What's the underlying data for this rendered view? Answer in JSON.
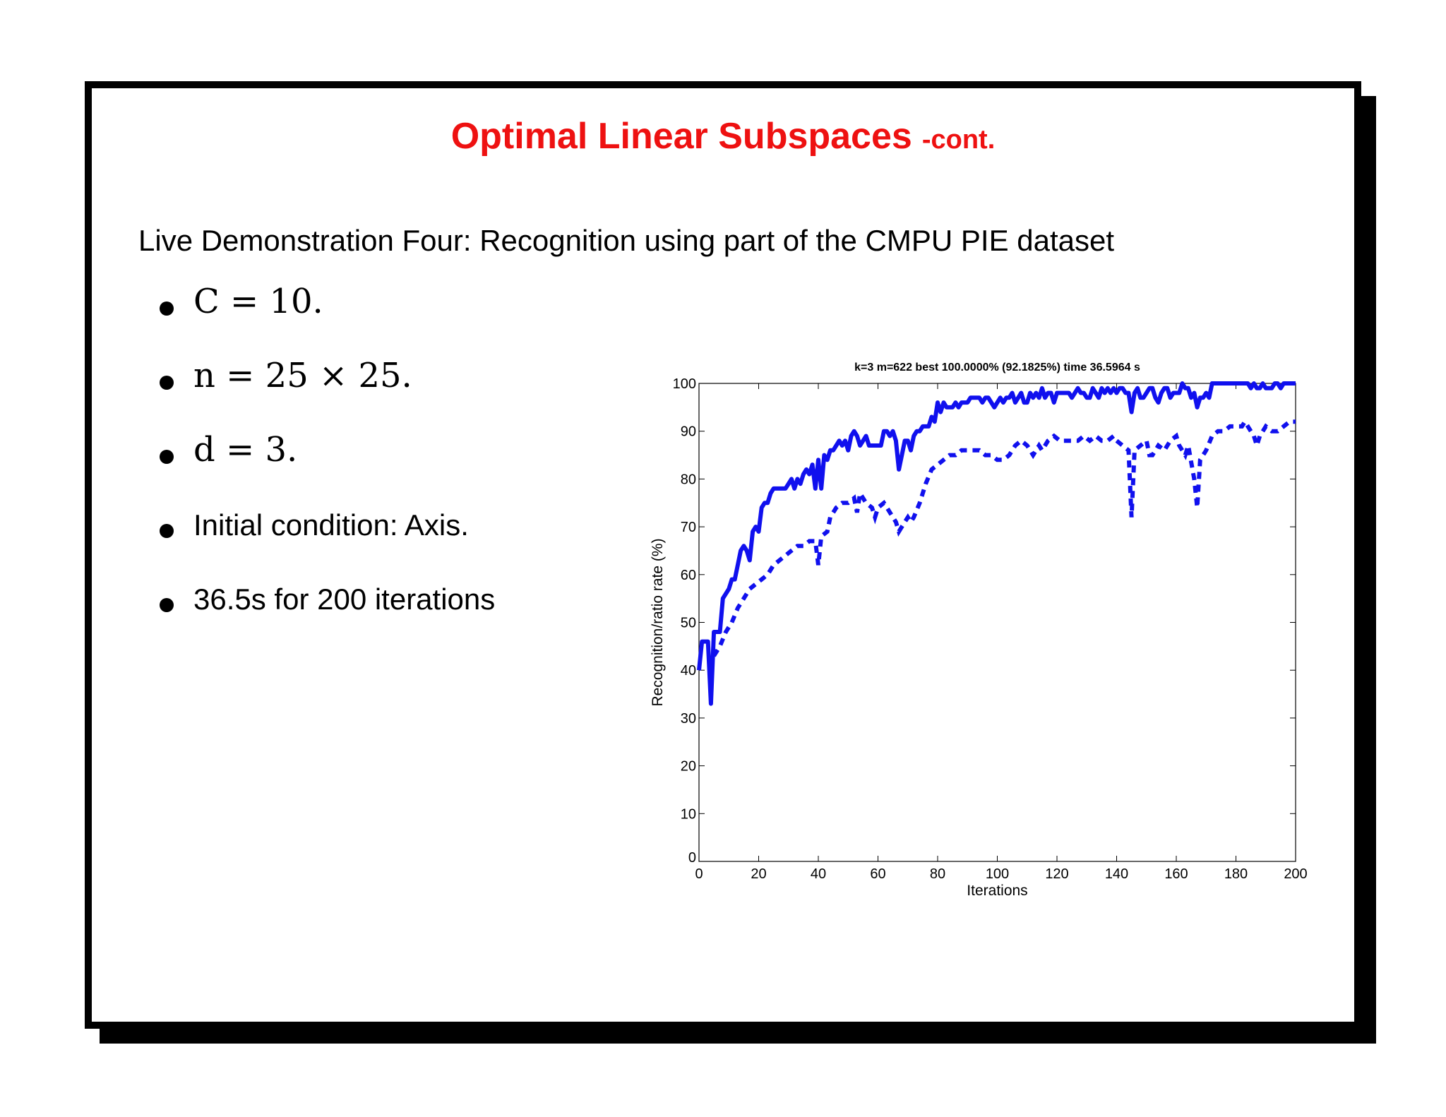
{
  "slide": {
    "title": "Optimal Linear Subspaces",
    "title_suffix": "-cont.",
    "intro": "Live Demonstration Four: Recognition using part of the CMPU PIE dataset",
    "bullets": [
      {
        "text": "C = 10.",
        "math": true
      },
      {
        "text": "n = 25 × 25.",
        "math": true
      },
      {
        "text": "d = 3.",
        "math": true
      },
      {
        "text": "Initial condition: Axis.",
        "math": false
      },
      {
        "text": "36.5s for 200 iterations",
        "math": false
      }
    ],
    "colors": {
      "title": "#ee1111",
      "series": "#1010ee"
    }
  },
  "chart_data": {
    "type": "line",
    "title": "k=3 m=622 best 100.0000% (92.1825%) time 36.5964 s",
    "xlabel": "Iterations",
    "ylabel": "Recognition/ratio rate (%)",
    "xlim": [
      0,
      200
    ],
    "ylim": [
      0,
      100
    ],
    "xticks": [
      0,
      20,
      40,
      60,
      80,
      100,
      120,
      140,
      160,
      180,
      200
    ],
    "yticks": [
      0,
      10,
      20,
      30,
      40,
      50,
      60,
      70,
      80,
      90,
      100
    ],
    "grid": false,
    "series": [
      {
        "style": "solid",
        "color": "#1010ee",
        "points": [
          [
            0,
            40
          ],
          [
            1,
            46
          ],
          [
            3,
            46
          ],
          [
            4,
            33
          ],
          [
            5,
            48
          ],
          [
            7,
            48
          ],
          [
            8,
            55
          ],
          [
            10,
            57
          ],
          [
            11,
            59
          ],
          [
            12,
            59
          ],
          [
            13,
            62
          ],
          [
            14,
            65
          ],
          [
            15,
            66
          ],
          [
            16,
            65
          ],
          [
            17,
            63
          ],
          [
            18,
            69
          ],
          [
            19,
            70
          ],
          [
            20,
            69
          ],
          [
            21,
            74
          ],
          [
            22,
            75
          ],
          [
            23,
            75
          ],
          [
            24,
            77
          ],
          [
            25,
            78
          ],
          [
            26,
            78
          ],
          [
            28,
            78
          ],
          [
            29,
            78
          ],
          [
            30,
            79
          ],
          [
            31,
            80
          ],
          [
            32,
            78
          ],
          [
            33,
            80
          ],
          [
            34,
            79
          ],
          [
            35,
            81
          ],
          [
            36,
            82
          ],
          [
            37,
            81
          ],
          [
            38,
            83
          ],
          [
            39,
            78
          ],
          [
            40,
            84
          ],
          [
            41,
            78
          ],
          [
            42,
            85
          ],
          [
            43,
            84
          ],
          [
            44,
            86
          ],
          [
            45,
            86
          ],
          [
            46,
            87
          ],
          [
            47,
            88
          ],
          [
            48,
            87
          ],
          [
            49,
            88
          ],
          [
            50,
            86
          ],
          [
            51,
            89
          ],
          [
            52,
            90
          ],
          [
            53,
            89
          ],
          [
            54,
            87
          ],
          [
            55,
            88
          ],
          [
            56,
            89
          ],
          [
            57,
            87
          ],
          [
            58,
            87
          ],
          [
            59,
            87
          ],
          [
            60,
            87
          ],
          [
            61,
            87
          ],
          [
            62,
            90
          ],
          [
            63,
            90
          ],
          [
            64,
            89
          ],
          [
            65,
            90
          ],
          [
            66,
            88
          ],
          [
            67,
            82
          ],
          [
            68,
            85
          ],
          [
            69,
            88
          ],
          [
            70,
            88
          ],
          [
            71,
            86
          ],
          [
            72,
            89
          ],
          [
            73,
            90
          ],
          [
            74,
            90
          ],
          [
            75,
            91
          ],
          [
            76,
            91
          ],
          [
            77,
            91
          ],
          [
            78,
            93
          ],
          [
            79,
            92
          ],
          [
            80,
            96
          ],
          [
            81,
            94
          ],
          [
            82,
            96
          ],
          [
            83,
            95
          ],
          [
            84,
            95
          ],
          [
            85,
            95
          ],
          [
            86,
            96
          ],
          [
            87,
            95
          ],
          [
            88,
            96
          ],
          [
            89,
            96
          ],
          [
            90,
            96
          ],
          [
            91,
            97
          ],
          [
            92,
            97
          ],
          [
            93,
            97
          ],
          [
            94,
            97
          ],
          [
            95,
            96
          ],
          [
            96,
            97
          ],
          [
            97,
            97
          ],
          [
            98,
            96
          ],
          [
            99,
            95
          ],
          [
            100,
            96
          ],
          [
            101,
            97
          ],
          [
            102,
            96
          ],
          [
            103,
            97
          ],
          [
            104,
            97
          ],
          [
            105,
            98
          ],
          [
            106,
            96
          ],
          [
            107,
            97
          ],
          [
            108,
            98
          ],
          [
            109,
            96
          ],
          [
            110,
            96
          ],
          [
            111,
            98
          ],
          [
            112,
            97
          ],
          [
            113,
            98
          ],
          [
            114,
            97
          ],
          [
            115,
            99
          ],
          [
            116,
            97
          ],
          [
            117,
            98
          ],
          [
            118,
            98
          ],
          [
            119,
            96
          ],
          [
            120,
            98
          ],
          [
            121,
            98
          ],
          [
            122,
            98
          ],
          [
            123,
            98
          ],
          [
            124,
            98
          ],
          [
            125,
            97
          ],
          [
            126,
            98
          ],
          [
            127,
            99
          ],
          [
            128,
            98
          ],
          [
            129,
            98
          ],
          [
            130,
            97
          ],
          [
            131,
            97
          ],
          [
            132,
            99
          ],
          [
            133,
            98
          ],
          [
            134,
            97
          ],
          [
            135,
            99
          ],
          [
            136,
            98
          ],
          [
            137,
            99
          ],
          [
            138,
            98
          ],
          [
            139,
            99
          ],
          [
            140,
            98
          ],
          [
            141,
            99
          ],
          [
            142,
            99
          ],
          [
            143,
            98
          ],
          [
            144,
            98
          ],
          [
            145,
            94
          ],
          [
            146,
            98
          ],
          [
            147,
            99
          ],
          [
            148,
            97
          ],
          [
            149,
            97
          ],
          [
            150,
            98
          ],
          [
            151,
            99
          ],
          [
            152,
            99
          ],
          [
            153,
            97
          ],
          [
            154,
            96
          ],
          [
            155,
            98
          ],
          [
            156,
            99
          ],
          [
            157,
            99
          ],
          [
            158,
            97
          ],
          [
            159,
            98
          ],
          [
            160,
            98
          ],
          [
            161,
            98
          ],
          [
            162,
            100
          ],
          [
            163,
            99
          ],
          [
            164,
            99
          ],
          [
            165,
            97
          ],
          [
            166,
            98
          ],
          [
            167,
            95
          ],
          [
            168,
            97
          ],
          [
            169,
            97
          ],
          [
            170,
            98
          ],
          [
            171,
            97
          ],
          [
            172,
            100
          ],
          [
            173,
            100
          ],
          [
            174,
            100
          ],
          [
            175,
            100
          ],
          [
            176,
            100
          ],
          [
            177,
            100
          ],
          [
            178,
            100
          ],
          [
            179,
            100
          ],
          [
            180,
            100
          ],
          [
            181,
            100
          ],
          [
            182,
            100
          ],
          [
            183,
            100
          ],
          [
            184,
            100
          ],
          [
            185,
            99
          ],
          [
            186,
            100
          ],
          [
            187,
            99
          ],
          [
            188,
            99
          ],
          [
            189,
            100
          ],
          [
            190,
            99
          ],
          [
            191,
            99
          ],
          [
            192,
            99
          ],
          [
            193,
            100
          ],
          [
            194,
            100
          ],
          [
            195,
            99
          ],
          [
            196,
            100
          ],
          [
            197,
            100
          ],
          [
            198,
            100
          ],
          [
            199,
            100
          ],
          [
            200,
            100
          ]
        ]
      },
      {
        "style": "dashed",
        "color": "#1010ee",
        "points": [
          [
            5,
            43
          ],
          [
            7,
            45
          ],
          [
            9,
            48
          ],
          [
            11,
            50
          ],
          [
            13,
            53
          ],
          [
            15,
            55
          ],
          [
            17,
            57
          ],
          [
            19,
            58
          ],
          [
            21,
            59
          ],
          [
            23,
            60
          ],
          [
            25,
            62
          ],
          [
            27,
            63
          ],
          [
            29,
            64
          ],
          [
            31,
            65
          ],
          [
            33,
            66
          ],
          [
            35,
            66
          ],
          [
            37,
            67
          ],
          [
            39,
            67
          ],
          [
            40,
            62
          ],
          [
            41,
            68
          ],
          [
            43,
            69
          ],
          [
            44,
            72
          ],
          [
            46,
            74
          ],
          [
            48,
            75
          ],
          [
            50,
            75
          ],
          [
            52,
            76
          ],
          [
            53,
            73
          ],
          [
            54,
            77
          ],
          [
            56,
            75
          ],
          [
            58,
            74
          ],
          [
            59,
            72
          ],
          [
            60,
            74
          ],
          [
            62,
            75
          ],
          [
            63,
            74
          ],
          [
            65,
            72
          ],
          [
            66,
            71
          ],
          [
            67,
            69
          ],
          [
            68,
            70
          ],
          [
            70,
            72
          ],
          [
            71,
            71
          ],
          [
            72,
            72
          ],
          [
            74,
            75
          ],
          [
            76,
            79
          ],
          [
            78,
            82
          ],
          [
            80,
            83
          ],
          [
            82,
            84
          ],
          [
            84,
            85
          ],
          [
            86,
            85
          ],
          [
            88,
            86
          ],
          [
            90,
            86
          ],
          [
            92,
            86
          ],
          [
            94,
            86
          ],
          [
            96,
            85
          ],
          [
            98,
            85
          ],
          [
            100,
            84
          ],
          [
            102,
            84
          ],
          [
            104,
            85
          ],
          [
            106,
            87
          ],
          [
            108,
            88
          ],
          [
            110,
            87
          ],
          [
            112,
            85
          ],
          [
            114,
            87
          ],
          [
            115,
            86
          ],
          [
            117,
            88
          ],
          [
            119,
            89
          ],
          [
            121,
            88
          ],
          [
            123,
            88
          ],
          [
            125,
            88
          ],
          [
            127,
            88
          ],
          [
            129,
            89
          ],
          [
            131,
            88
          ],
          [
            133,
            89
          ],
          [
            135,
            88
          ],
          [
            137,
            88
          ],
          [
            139,
            89
          ],
          [
            140,
            88
          ],
          [
            142,
            87
          ],
          [
            144,
            86
          ],
          [
            145,
            72
          ],
          [
            146,
            86
          ],
          [
            148,
            87
          ],
          [
            150,
            88
          ],
          [
            151,
            85
          ],
          [
            152,
            85
          ],
          [
            154,
            87
          ],
          [
            156,
            86
          ],
          [
            158,
            88
          ],
          [
            160,
            89
          ],
          [
            161,
            87
          ],
          [
            163,
            85
          ],
          [
            164,
            87
          ],
          [
            166,
            80
          ],
          [
            167,
            74
          ],
          [
            168,
            84
          ],
          [
            170,
            86
          ],
          [
            172,
            89
          ],
          [
            174,
            90
          ],
          [
            176,
            90
          ],
          [
            178,
            91
          ],
          [
            180,
            91
          ],
          [
            182,
            91
          ],
          [
            183,
            92
          ],
          [
            185,
            90
          ],
          [
            186,
            89
          ],
          [
            187,
            87
          ],
          [
            188,
            89
          ],
          [
            190,
            91
          ],
          [
            192,
            90
          ],
          [
            194,
            90
          ],
          [
            196,
            91
          ],
          [
            198,
            92
          ],
          [
            200,
            92
          ]
        ]
      }
    ]
  }
}
